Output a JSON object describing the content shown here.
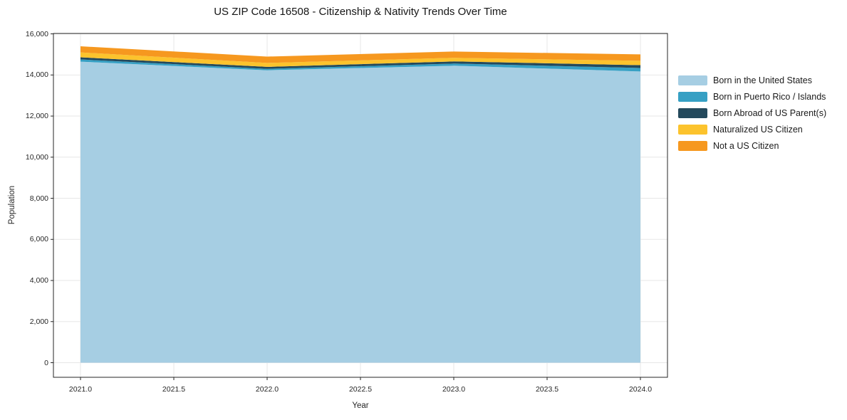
{
  "figure": {
    "kind": "matplotlib-style stacked area chart"
  },
  "chart_data": {
    "type": "area",
    "stacked": true,
    "title": "US ZIP Code 16508 - Citizenship & Nativity Trends Over Time",
    "xlabel": "Year",
    "ylabel": "Population",
    "x": [
      2021,
      2022,
      2023,
      2024
    ],
    "series": [
      {
        "name": "Born in the United States",
        "color": "#a6cee3",
        "values": [
          14650,
          14230,
          14450,
          14170
        ]
      },
      {
        "name": "Born in Puerto Rico / Islands",
        "color": "#36a0c4",
        "values": [
          105,
          70,
          105,
          170
        ]
      },
      {
        "name": "Born Abroad of US Parent(s)",
        "color": "#24495c",
        "values": [
          105,
          95,
          105,
          140
        ]
      },
      {
        "name": "Naturalized US Citizen",
        "color": "#fcc32d",
        "values": [
          240,
          190,
          175,
          210
        ]
      },
      {
        "name": "Not a US Citizen",
        "color": "#f6981f",
        "values": [
          295,
          310,
          305,
          310
        ]
      }
    ],
    "totals": [
      15395,
      14895,
      15140,
      15000
    ],
    "xticks": {
      "values": [
        2021.0,
        2021.5,
        2022.0,
        2022.5,
        2023.0,
        2023.5,
        2024.0
      ],
      "labels": [
        "2021.0",
        "2021.5",
        "2022.0",
        "2022.5",
        "2023.0",
        "2023.5",
        "2024.0"
      ]
    },
    "yticks": {
      "values": [
        0,
        2000,
        4000,
        6000,
        8000,
        10000,
        12000,
        14000,
        16000
      ],
      "labels": [
        "0",
        "2,000",
        "4,000",
        "6,000",
        "8,000",
        "10,000",
        "12,000",
        "14,000",
        "16,000"
      ]
    },
    "xlim": [
      2020.855,
      2024.145
    ],
    "ylim": [
      -710,
      16020
    ],
    "grid": true,
    "grid_color": "#e7e7e7",
    "axis_color": "#262626",
    "background_color": "#ffffff",
    "legend_position": "right-outside-top"
  }
}
